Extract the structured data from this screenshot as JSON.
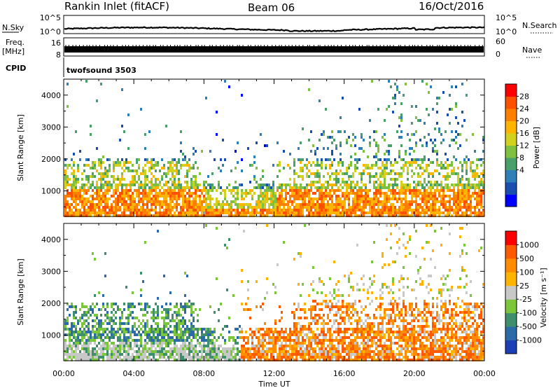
{
  "header": {
    "station": "Rankin Inlet (fitACF)",
    "beam": "Beam 06",
    "date": "16/Oct/2016"
  },
  "strip_noise": {
    "left_label": "N.Sky",
    "right_label": "N.Search",
    "left_ticks": [
      "10^5",
      "10^0"
    ],
    "right_ticks": [
      "10^5",
      "10^0"
    ]
  },
  "strip_freq": {
    "left_label_1": "Freq.",
    "left_label_2": "[MHz]",
    "right_label": "Nave",
    "left_ticks": [
      "16",
      "8"
    ],
    "right_ticks": [
      "60",
      "0"
    ]
  },
  "cpid": {
    "label": "CPID",
    "value": "twofsound 3503"
  },
  "chart_data": [
    {
      "type": "heatmap",
      "name": "power",
      "ylabel": "Slant Range [km]",
      "yticks": [
        1000,
        2000,
        3000,
        4000
      ],
      "ylim": [
        200,
        4500
      ],
      "xlabel": "",
      "xtick_labels": [
        "00:00",
        "04:00",
        "08:00",
        "12:00",
        "16:00",
        "20:00",
        "00:00"
      ],
      "xlim_hours": [
        0,
        24
      ],
      "colorbar": {
        "label": "Power [dB]",
        "ticks": [
          "28",
          "24",
          "20",
          "16",
          "12",
          "8",
          "4"
        ],
        "colors": [
          "#0000ff",
          "#1a4fb0",
          "#2f7fb8",
          "#4aa06a",
          "#7fc040",
          "#d2d21e",
          "#ffb400",
          "#ff8000",
          "#ff5000",
          "#ff0000"
        ]
      }
    },
    {
      "type": "heatmap",
      "name": "velocity",
      "ylabel": "Slant Range [km]",
      "yticks": [
        1000,
        2000,
        3000,
        4000
      ],
      "ylim": [
        200,
        4500
      ],
      "xlabel": "Time UT",
      "xtick_labels": [
        "00:00",
        "04:00",
        "08:00",
        "12:00",
        "16:00",
        "20:00",
        "00:00"
      ],
      "xlim_hours": [
        0,
        24
      ],
      "colorbar": {
        "label": "Velocity [m s⁻¹]",
        "ticks": [
          "1000",
          "500",
          "100",
          "25",
          "-25",
          "-100",
          "-500",
          "-1000"
        ],
        "colors": [
          "#1d3fb5",
          "#2c6ba8",
          "#3f8f6d",
          "#7cc63c",
          "#c8c8c8",
          "#ffb400",
          "#ff8c00",
          "#ff5a00",
          "#ff0000"
        ]
      }
    }
  ],
  "footer": {
    "xlabel": "Time UT"
  }
}
